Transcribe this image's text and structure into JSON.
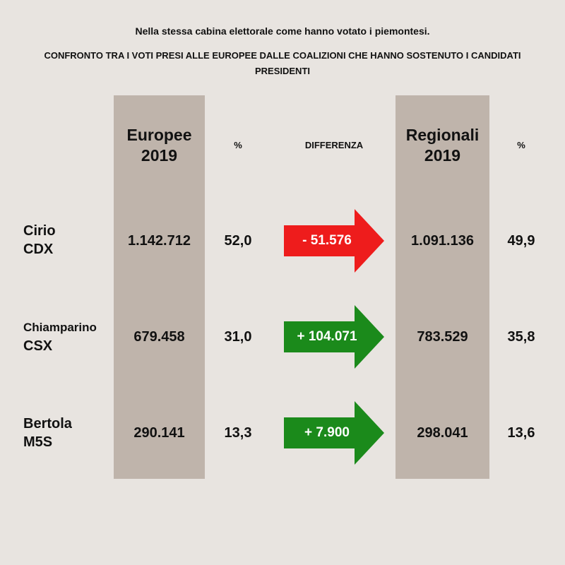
{
  "header": {
    "line1": "Nella stessa cabina elettorale come hanno votato i piemontesi.",
    "line2": "CONFRONTO  TRA I VOTI PRESI ALLE EUROPEE DALLE COALIZIONI CHE HANNO SOSTENUTO I CANDIDATI PRESIDENTI"
  },
  "columns": {
    "europee_line1": "Europee",
    "europee_line2": "2019",
    "pct1": "%",
    "diff": "DIFFERENZA",
    "regionali_line1": "Regionali",
    "regionali_line2": "2019",
    "pct2": "%"
  },
  "rows": [
    {
      "name_line1": "Cirio",
      "name_line2": "CDX",
      "europee": "1.142.712",
      "europee_pct": "52,0",
      "diff": "- 51.576",
      "regionali": "1.091.136",
      "regionali_pct": "49,9"
    },
    {
      "name_line1": "Chiamparino",
      "name_line2": "CSX",
      "europee": "679.458",
      "europee_pct": "31,0",
      "diff": "+ 104.071",
      "regionali": "783.529",
      "regionali_pct": "35,8"
    },
    {
      "name_line1": "Bertola",
      "name_line2": "M5S",
      "europee": "290.141",
      "europee_pct": "13,3",
      "diff": "+ 7.900",
      "regionali": "298.041",
      "regionali_pct": "13,6"
    }
  ],
  "colors": {
    "background": "#e8e4e0",
    "column_shade": "#bfb4ab",
    "arrow_negative": "#ee1c1c",
    "arrow_positive": "#1b8a1b"
  },
  "chart_data": {
    "type": "table",
    "title": "CONFRONTO  TRA I VOTI PRESI ALLE EUROPEE DALLE COALIZIONI CHE HANNO SOSTENUTO I CANDIDATI PRESIDENTI",
    "categories": [
      "Cirio CDX",
      "Chiamparino CSX",
      "Bertola M5S"
    ],
    "series": [
      {
        "name": "Europee 2019",
        "values": [
          1142712,
          679458,
          290141
        ]
      },
      {
        "name": "Europee 2019 %",
        "values": [
          52.0,
          31.0,
          13.3
        ]
      },
      {
        "name": "DIFFERENZA",
        "values": [
          -51576,
          104071,
          7900
        ]
      },
      {
        "name": "Regionali 2019",
        "values": [
          1091136,
          783529,
          298041
        ]
      },
      {
        "name": "Regionali 2019 %",
        "values": [
          49.9,
          35.8,
          13.6
        ]
      }
    ]
  }
}
